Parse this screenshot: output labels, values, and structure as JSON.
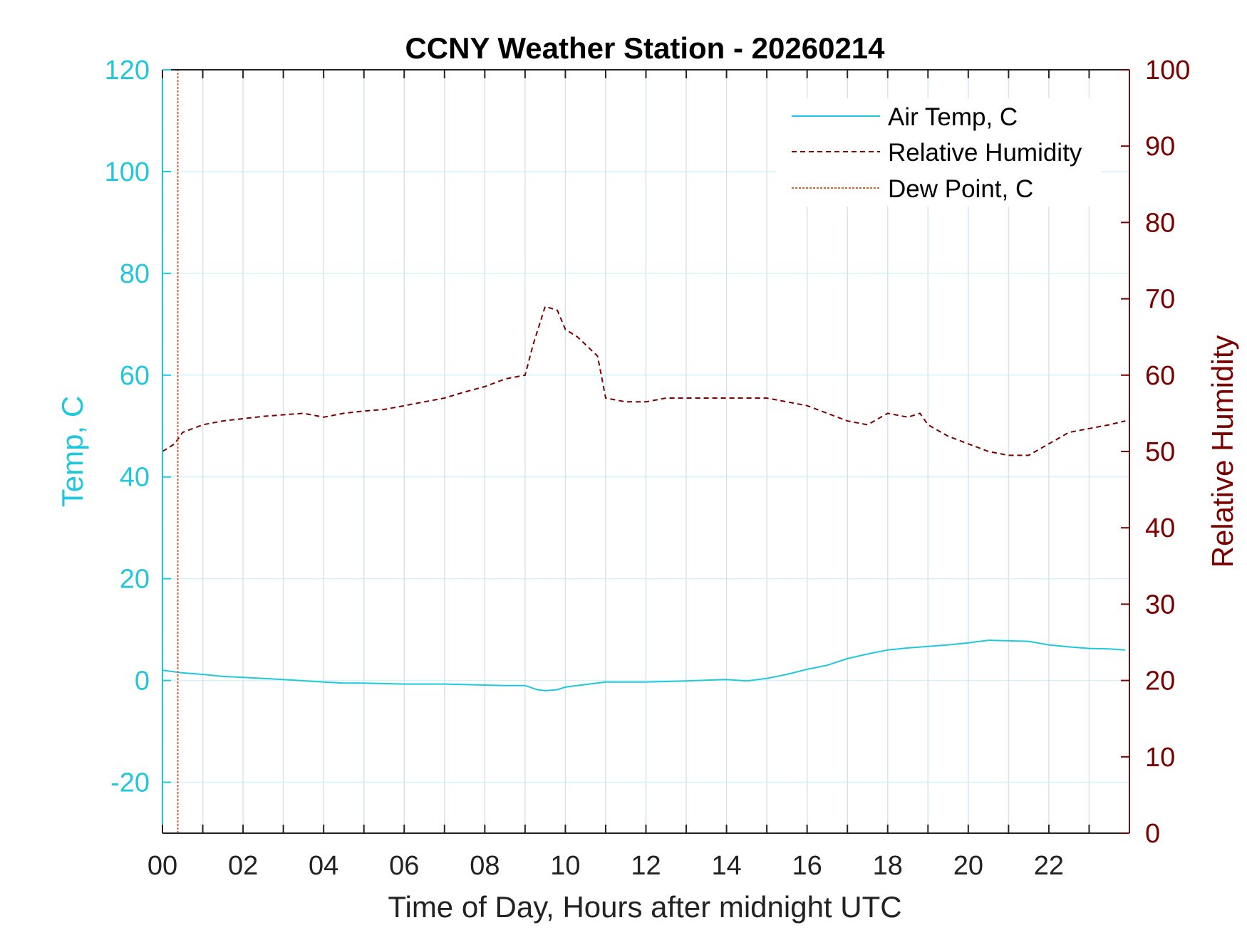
{
  "chart_data": {
    "type": "line",
    "title": "CCNY Weather Station - 20260214",
    "xlabel": "Time of Day, Hours after midnight UTC",
    "ylabel_left": "Temp, C",
    "ylabel_right": "Relative Humidity",
    "xlim": [
      0,
      24
    ],
    "ylim_left": [
      -30,
      120
    ],
    "ylim_right": [
      0,
      100
    ],
    "x_ticks": [
      0,
      2,
      4,
      6,
      8,
      10,
      12,
      14,
      16,
      18,
      20,
      22
    ],
    "x_tick_labels": [
      "00",
      "02",
      "04",
      "06",
      "08",
      "10",
      "12",
      "14",
      "16",
      "18",
      "20",
      "22"
    ],
    "x_minor_grid": [
      1,
      3,
      5,
      7,
      9,
      11,
      13,
      15,
      17,
      19,
      21,
      23
    ],
    "y_left_ticks": [
      -20,
      0,
      20,
      40,
      60,
      80,
      100,
      120
    ],
    "y_left_tick_labels": [
      "-20",
      "0",
      "20",
      "40",
      "60",
      "80",
      "100",
      "120"
    ],
    "y_right_ticks": [
      0,
      10,
      20,
      30,
      40,
      50,
      60,
      70,
      80,
      90,
      100
    ],
    "y_right_tick_labels": [
      "0",
      "10",
      "20",
      "30",
      "40",
      "50",
      "60",
      "70",
      "80",
      "90",
      "100"
    ],
    "legend_position": "top-right",
    "colors": {
      "air_temp": "#1fc8dc",
      "humidity": "#7a0000",
      "dew_point": "#e06030",
      "left_axis": "#1fc8dc",
      "right_axis": "#7a0000",
      "grid": "#d9e3ea",
      "grid_h": "#d4f4f8"
    },
    "series": [
      {
        "name": "Air Temp, C",
        "axis": "left",
        "style": "solid",
        "x": [
          0,
          0.5,
          1,
          1.5,
          2,
          3,
          4,
          4.5,
          5,
          6,
          7,
          8,
          8.5,
          9,
          9.3,
          9.5,
          9.8,
          10,
          10.5,
          11,
          11.5,
          12,
          13,
          14,
          14.5,
          15,
          15.5,
          16,
          16.5,
          17,
          17.5,
          18,
          18.5,
          19,
          19.5,
          20,
          20.5,
          21,
          21.5,
          22,
          22.5,
          23,
          23.5,
          23.9
        ],
        "y": [
          2,
          1.5,
          1.2,
          0.8,
          0.6,
          0.2,
          -0.3,
          -0.5,
          -0.5,
          -0.7,
          -0.7,
          -0.9,
          -1,
          -1,
          -1.8,
          -2,
          -1.8,
          -1.3,
          -0.8,
          -0.3,
          -0.3,
          -0.3,
          -0.1,
          0.2,
          -0.1,
          0.4,
          1.2,
          2.2,
          3,
          4.3,
          5.2,
          6,
          6.4,
          6.7,
          7,
          7.4,
          7.9,
          7.8,
          7.7,
          7,
          6.6,
          6.3,
          6.2,
          6
        ]
      },
      {
        "name": "Relative Humidity",
        "axis": "right",
        "style": "dashed",
        "x": [
          0,
          0.3,
          0.5,
          1,
          1.5,
          2,
          2.5,
          3,
          3.5,
          4,
          4.5,
          5,
          5.5,
          6,
          6.5,
          7,
          7.5,
          8,
          8.5,
          9,
          9.2,
          9.5,
          9.8,
          10,
          10.3,
          10.5,
          10.8,
          11,
          11.5,
          12,
          12.5,
          13,
          13.5,
          14,
          14.5,
          15,
          15.5,
          16,
          16.5,
          17,
          17.5,
          18,
          18.5,
          18.8,
          19,
          19.5,
          20,
          20.5,
          21,
          21.5,
          22,
          22.5,
          23,
          23.5,
          23.9
        ],
        "y": [
          50,
          51,
          52.5,
          53.5,
          54,
          54.3,
          54.6,
          54.8,
          55,
          54.5,
          55,
          55.3,
          55.5,
          56,
          56.5,
          57,
          57.8,
          58.5,
          59.5,
          60,
          64,
          69,
          68.5,
          66,
          65,
          64,
          62.5,
          57,
          56.5,
          56.5,
          57,
          57,
          57,
          57,
          57,
          57,
          56.5,
          56,
          55,
          54,
          53.5,
          55,
          54.5,
          55,
          53.5,
          52,
          51,
          50,
          49.5,
          49.5,
          51,
          52.5,
          53,
          53.5,
          54
        ]
      },
      {
        "name": "Dew Point, C",
        "axis": "left",
        "style": "dotted",
        "x": [
          0.38,
          0.38
        ],
        "y": [
          -30,
          120
        ]
      }
    ]
  }
}
